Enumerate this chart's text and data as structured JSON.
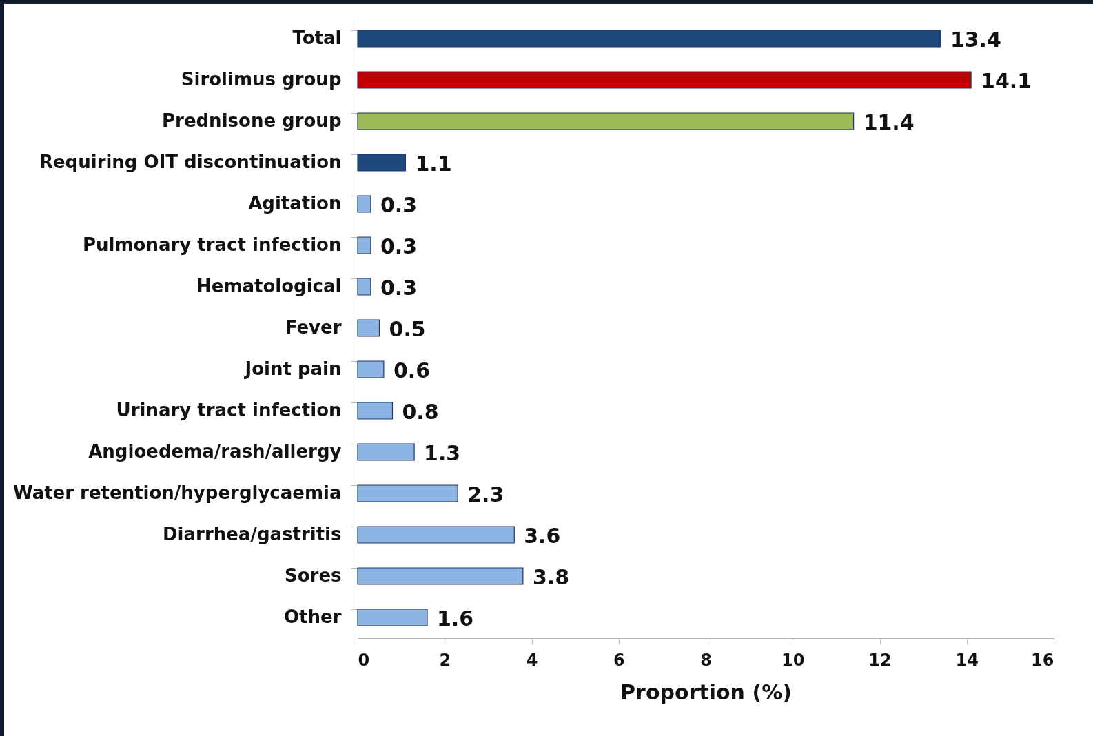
{
  "chart_data": {
    "type": "bar",
    "orientation": "horizontal",
    "xlabel": "Proportion (%)",
    "categories": [
      "Total",
      "Sirolimus group",
      "Prednisone group",
      "Requiring OIT discontinuation",
      "Agitation",
      "Pulmonary tract infection",
      "Hematological",
      "Fever",
      "Joint pain",
      "Urinary tract infection",
      "Angioedema/rash/allergy",
      "Water retention/hyperglycaemia",
      "Diarrhea/gastritis",
      "Sores",
      "Other"
    ],
    "values": [
      13.4,
      14.1,
      11.4,
      1.1,
      0.3,
      0.3,
      0.3,
      0.5,
      0.6,
      0.8,
      1.3,
      2.3,
      3.6,
      3.8,
      1.6
    ],
    "colors": [
      "#1f497d",
      "#c00000",
      "#9bbb59",
      "#1f497d",
      "#8db4e2",
      "#8db4e2",
      "#8db4e2",
      "#8db4e2",
      "#8db4e2",
      "#8db4e2",
      "#8db4e2",
      "#8db4e2",
      "#8db4e2",
      "#8db4e2",
      "#8db4e2"
    ],
    "xlim": [
      0,
      16
    ],
    "xticks": [
      0,
      2,
      4,
      6,
      8,
      10,
      12,
      14,
      16
    ],
    "data_labels": true,
    "grid": false
  }
}
